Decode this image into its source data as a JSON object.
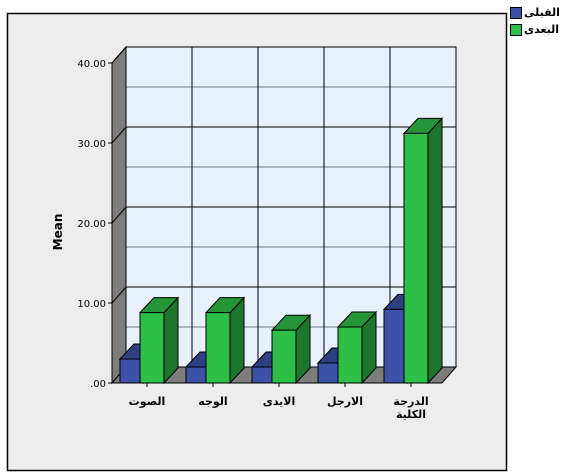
{
  "chart_data": {
    "type": "bar",
    "style": "3d-clustered",
    "categories": [
      "الصوت",
      "الوجه",
      "الايدى",
      "الارجل",
      "الدرجة الكلية"
    ],
    "category_label_lines": [
      [
        "الصوت"
      ],
      [
        "الوجه"
      ],
      [
        "الايدى"
      ],
      [
        "الارجل"
      ],
      [
        "الدرجة",
        "الكلية"
      ]
    ],
    "series": [
      {
        "name": "القبلى",
        "values": [
          3.0,
          2.0,
          2.0,
          2.5,
          9.2
        ],
        "color": "#3b52a6"
      },
      {
        "name": "البعدى",
        "values": [
          8.8,
          8.8,
          6.6,
          7.0,
          31.2
        ],
        "color": "#2ebf48"
      }
    ],
    "ylabel": "Mean",
    "xlabel": "",
    "ylim": [
      0,
      40
    ],
    "yticks": [
      0,
      10,
      20,
      30,
      40
    ],
    "ytick_labels": [
      ".00",
      "10.00",
      "20.00",
      "30.00",
      "40.00"
    ],
    "grid": true,
    "legend_position": "top-right",
    "plot_background": "#e8f1fb",
    "frame_background": "#ededed"
  }
}
